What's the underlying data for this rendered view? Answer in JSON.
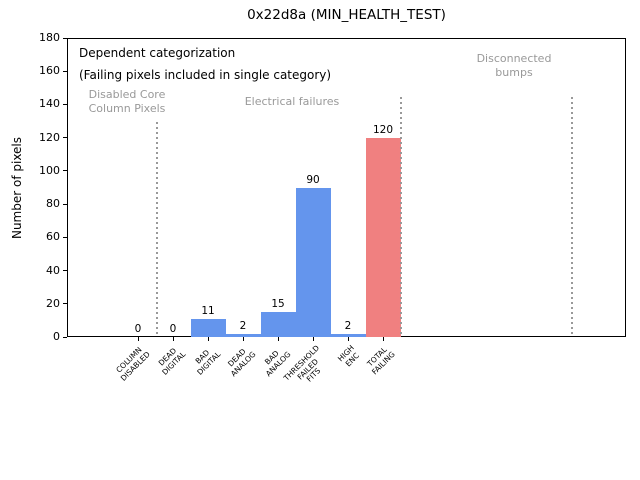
{
  "title": "0x22d8a (MIN_HEALTH_TEST)",
  "ylabel": "Number of pixels",
  "chart_data": {
    "type": "bar",
    "title": "0x22d8a (MIN_HEALTH_TEST)",
    "xlabel": "",
    "ylabel": "Number of pixels",
    "categories": [
      "COLUMN\nDISABLED",
      "DEAD\nDIGITAL",
      "BAD\nDIGITAL",
      "DEAD\nANALOG",
      "BAD\nANALOG",
      "THRESHOLD\nFAILED\nFITS",
      "HIGH\nENC",
      "TOTAL\nFAILING"
    ],
    "values": [
      0,
      0,
      11,
      2,
      15,
      90,
      2,
      120
    ],
    "value_labels": [
      "0",
      "0",
      "11",
      "2",
      "15",
      "90",
      "2",
      "120"
    ],
    "bar_colors": [
      "#6495ED",
      "#6495ED",
      "#6495ED",
      "#6495ED",
      "#6495ED",
      "#6495ED",
      "#6495ED",
      "#F08080"
    ],
    "ylim": [
      0,
      180
    ],
    "yticks": [
      0,
      20,
      40,
      60,
      80,
      100,
      120,
      140,
      160,
      180
    ],
    "grid": false,
    "legend": "none",
    "annotations": {
      "dependent_line1": "Dependent categorization",
      "dependent_line2": "(Failing pixels included in single category)",
      "region_disabled": "Disabled Core\nColumn Pixels",
      "region_electrical": "Electrical failures",
      "region_disconnected": "Disconnected\nbumps"
    },
    "colors": {
      "bar_default": "#6495ED",
      "bar_total_failing": "#F08080",
      "annotation_gray": "#999999",
      "separator_gray": "#999999"
    }
  }
}
